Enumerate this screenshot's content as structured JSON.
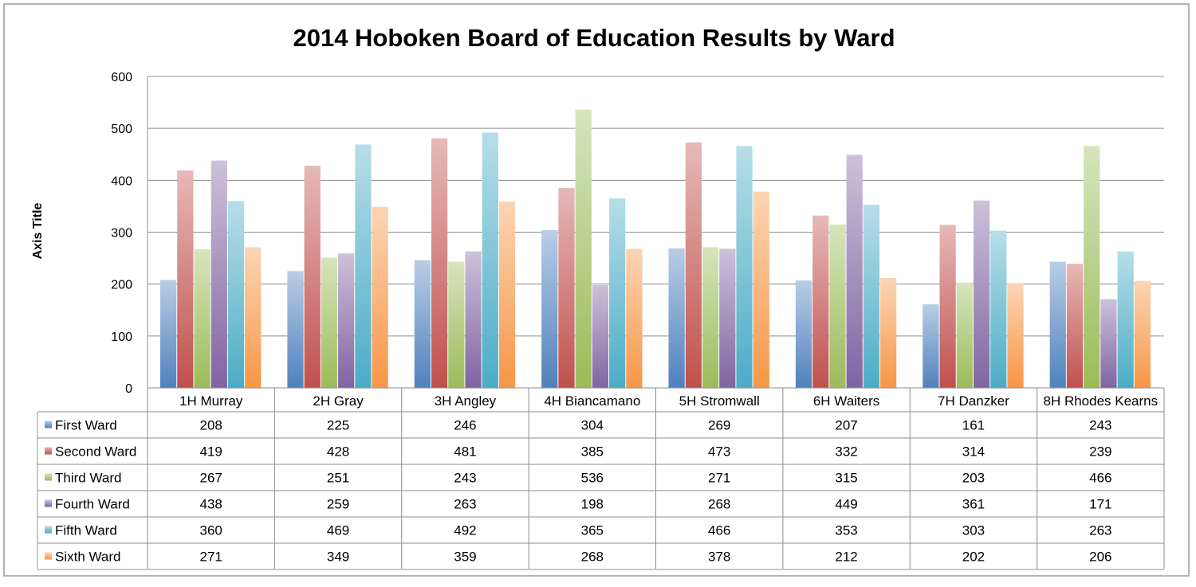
{
  "chart_data": {
    "type": "bar",
    "title": "2014 Hoboken Board of Education Results by Ward",
    "xlabel": "",
    "ylabel": "Axis Title",
    "ylim": [
      0,
      600
    ],
    "yticks": [
      0,
      100,
      200,
      300,
      400,
      500,
      600
    ],
    "grid": true,
    "legend": "data table below chart",
    "categories": [
      "1H Murray",
      "2H Gray",
      "3H Angley",
      "4H Biancamano",
      "5H Stromwall",
      "6H Waiters",
      "7H Danzker",
      "8H Rhodes Kearns"
    ],
    "series": [
      {
        "name": "First Ward",
        "color": "#4f81bd",
        "values": [
          208,
          225,
          246,
          304,
          269,
          207,
          161,
          243
        ]
      },
      {
        "name": "Second Ward",
        "color": "#c0504d",
        "values": [
          419,
          428,
          481,
          385,
          473,
          332,
          314,
          239
        ]
      },
      {
        "name": "Third Ward",
        "color": "#9bbb59",
        "values": [
          267,
          251,
          243,
          536,
          271,
          315,
          203,
          466
        ]
      },
      {
        "name": "Fourth Ward",
        "color": "#8064a2",
        "values": [
          438,
          259,
          263,
          198,
          268,
          449,
          361,
          171
        ]
      },
      {
        "name": "Fifth Ward",
        "color": "#4bacc6",
        "values": [
          360,
          469,
          492,
          365,
          466,
          353,
          303,
          263
        ]
      },
      {
        "name": "Sixth Ward",
        "color": "#f79646",
        "values": [
          271,
          349,
          359,
          268,
          378,
          212,
          202,
          206
        ]
      }
    ]
  }
}
